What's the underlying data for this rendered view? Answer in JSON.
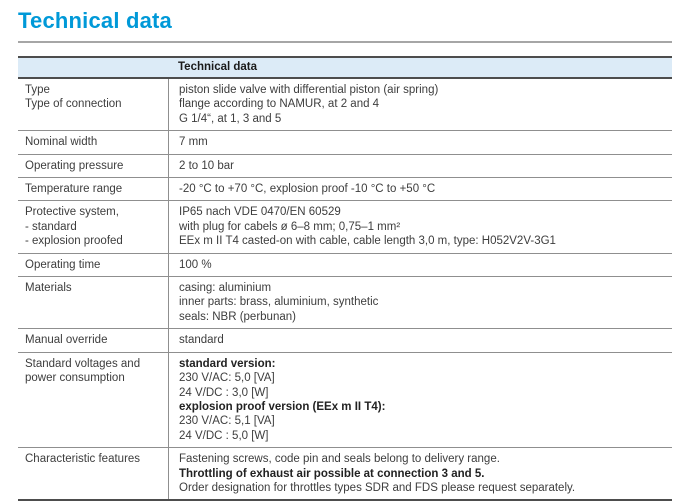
{
  "page": {
    "title": "Technical data"
  },
  "colors": {
    "title": "#0099d8",
    "header_bg": "#dcebf7",
    "border_dark": "#4d4d4d",
    "border_light": "#8f8f8f"
  },
  "table": {
    "header": "Technical data",
    "rows": [
      {
        "label_lines": [
          "Type",
          "Type of connection"
        ],
        "value_lines": [
          {
            "text": "piston slide valve with differential piston (air spring)",
            "bold": false
          },
          {
            "text": "flange according to NAMUR, at 2 and 4",
            "bold": false
          },
          {
            "text": "G 1/4“, at 1, 3 and 5",
            "bold": false
          }
        ]
      },
      {
        "label_lines": [
          "Nominal width"
        ],
        "value_lines": [
          {
            "text": "7 mm",
            "bold": false
          }
        ]
      },
      {
        "label_lines": [
          "Operating pressure"
        ],
        "value_lines": [
          {
            "text": "2 to 10 bar",
            "bold": false
          }
        ]
      },
      {
        "label_lines": [
          "Temperature range"
        ],
        "value_lines": [
          {
            "text": "-20 °C to +70 °C, explosion proof -10 °C to +50 °C",
            "bold": false
          }
        ]
      },
      {
        "label_lines": [
          "Protective system,",
          "- standard",
          "- explosion proofed"
        ],
        "value_lines": [
          {
            "text": "IP65 nach VDE 0470/EN 60529",
            "bold": false
          },
          {
            "text": "with plug for cabels ø 6–8 mm; 0,75–1 mm²",
            "bold": false
          },
          {
            "text": "EEx m II T4 casted-on with cable, cable length 3,0 m, type: H052V2V-3G1",
            "bold": false
          }
        ]
      },
      {
        "label_lines": [
          "Operating time"
        ],
        "value_lines": [
          {
            "text": "100 %",
            "bold": false
          }
        ]
      },
      {
        "label_lines": [
          "Materials"
        ],
        "value_lines": [
          {
            "text": "casing: aluminium",
            "bold": false
          },
          {
            "text": "inner parts: brass, aluminium, synthetic",
            "bold": false
          },
          {
            "text": "seals: NBR (perbunan)",
            "bold": false
          }
        ]
      },
      {
        "label_lines": [
          "Manual override"
        ],
        "value_lines": [
          {
            "text": "standard",
            "bold": false
          }
        ]
      },
      {
        "label_lines": [
          "Standard voltages and",
          "power consumption"
        ],
        "value_lines": [
          {
            "text": "standard version:",
            "bold": true
          },
          {
            "text": "230 V/AC: 5,0 [VA]",
            "bold": false
          },
          {
            "text": "24 V/DC : 3,0 [W]",
            "bold": false
          },
          {
            "text": "explosion proof version (EEx m II T4):",
            "bold": true
          },
          {
            "text": "230 V/AC: 5,1 [VA]",
            "bold": false
          },
          {
            "text": "24 V/DC : 5,0 [W]",
            "bold": false
          }
        ]
      },
      {
        "label_lines": [
          "Characteristic features"
        ],
        "value_lines": [
          {
            "text": "Fastening screws, code pin and seals belong to delivery range.",
            "bold": false
          },
          {
            "text": "Throttling of exhaust air possible at connection 3 and 5.",
            "bold": true
          },
          {
            "text": "Order designation for throttles types SDR and FDS please request separately.",
            "bold": false
          }
        ]
      }
    ]
  }
}
